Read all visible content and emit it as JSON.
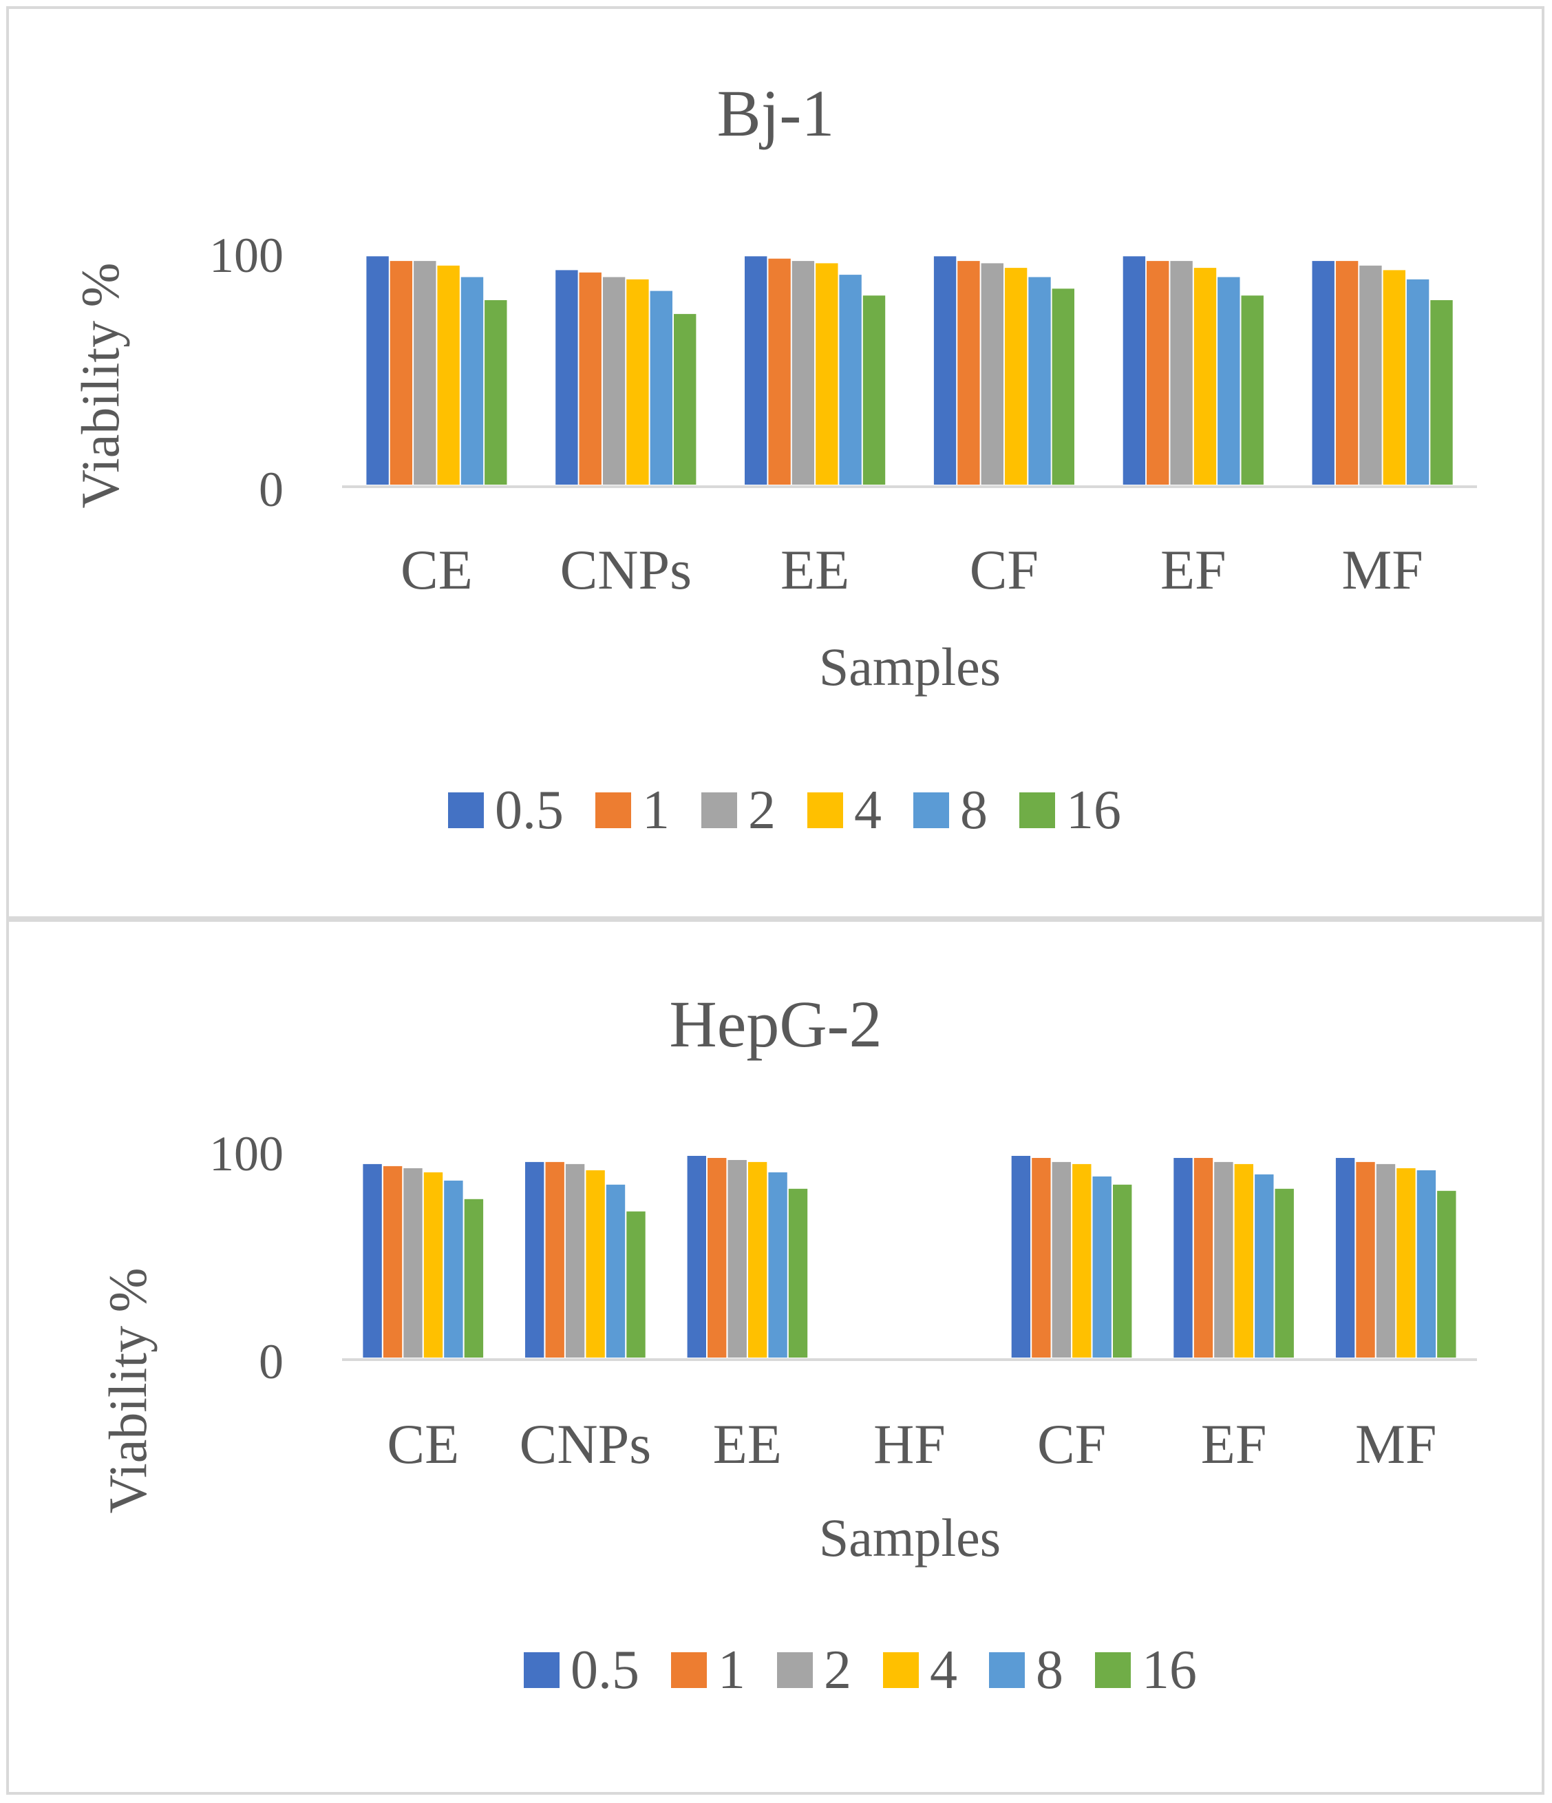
{
  "chart_data": [
    {
      "type": "bar",
      "title": "Bj-1",
      "xlabel": "Samples",
      "ylabel": "Viability %",
      "ylim": [
        0,
        100
      ],
      "yticks": [
        "0",
        "100"
      ],
      "legend_position": "bottom",
      "categories": [
        "CE",
        "CNPs",
        "EE",
        "CF",
        "EF",
        "MF"
      ],
      "series": [
        {
          "name": "0.5",
          "color": "#4472C4",
          "values": [
            99,
            93,
            99,
            99,
            99,
            97
          ]
        },
        {
          "name": "1",
          "color": "#ED7D31",
          "values": [
            97,
            92,
            98,
            97,
            97,
            97
          ]
        },
        {
          "name": "2",
          "color": "#A5A5A5",
          "values": [
            97,
            90,
            97,
            96,
            97,
            95
          ]
        },
        {
          "name": "4",
          "color": "#FFC000",
          "values": [
            95,
            89,
            96,
            94,
            94,
            93
          ]
        },
        {
          "name": "8",
          "color": "#5B9BD5",
          "values": [
            90,
            84,
            91,
            90,
            90,
            89
          ]
        },
        {
          "name": "16",
          "color": "#70AD47",
          "values": [
            80,
            74,
            82,
            85,
            82,
            80
          ]
        }
      ]
    },
    {
      "type": "bar",
      "title": "HepG-2",
      "xlabel": "Samples",
      "ylabel": "Viability %",
      "ylim": [
        0,
        100
      ],
      "yticks": [
        "0",
        "100"
      ],
      "legend_position": "bottom",
      "categories": [
        "CE",
        "CNPs",
        "EE",
        "HF",
        "CF",
        "EF",
        "MF"
      ],
      "series": [
        {
          "name": "0.5",
          "color": "#4472C4",
          "values": [
            94,
            95,
            98,
            0,
            98,
            97,
            97
          ]
        },
        {
          "name": "1",
          "color": "#ED7D31",
          "values": [
            93,
            95,
            97,
            0,
            97,
            97,
            95
          ]
        },
        {
          "name": "2",
          "color": "#A5A5A5",
          "values": [
            92,
            94,
            96,
            0,
            95,
            95,
            94
          ]
        },
        {
          "name": "4",
          "color": "#FFC000",
          "values": [
            90,
            91,
            95,
            0,
            94,
            94,
            92
          ]
        },
        {
          "name": "8",
          "color": "#5B9BD5",
          "values": [
            86,
            84,
            90,
            0,
            88,
            89,
            91
          ]
        },
        {
          "name": "16",
          "color": "#70AD47",
          "values": [
            77,
            71,
            82,
            0,
            84,
            82,
            81
          ]
        }
      ]
    }
  ]
}
